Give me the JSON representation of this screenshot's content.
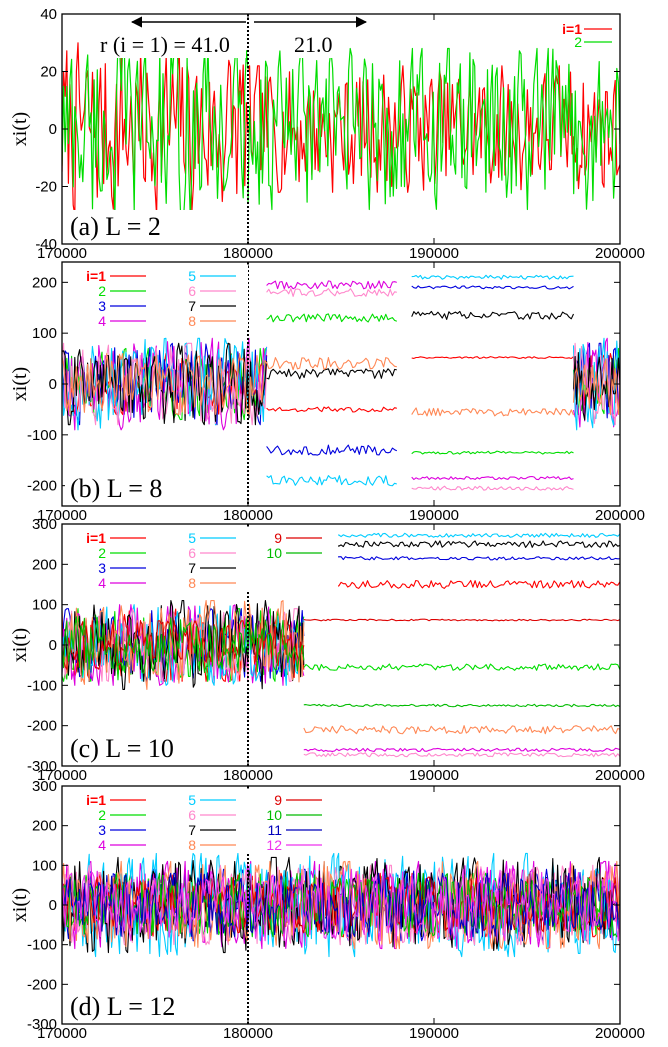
{
  "figure": {
    "background": "#ffffff"
  },
  "chart_data": [
    {
      "type": "line",
      "panel_label": "(a)   L = 2",
      "ylabel": "xi(t)",
      "xlim": [
        170000,
        200000
      ],
      "ylim": [
        -40,
        40
      ],
      "xticks": [
        170000,
        180000,
        190000,
        200000
      ],
      "yticks": [
        -40,
        -20,
        0,
        20,
        40
      ],
      "vline_x": 180000,
      "annotations": [
        "r (i = 1) = 41.0",
        "21.0"
      ],
      "series": [
        {
          "name": "i=1",
          "color": "#ff0000",
          "regimes": [
            {
              "x_range": [
                170000,
                180000
              ],
              "kind": "chaotic",
              "amplitude": 30,
              "center": 0
            },
            {
              "x_range": [
                180000,
                200000
              ],
              "kind": "chaotic",
              "amplitude": 22,
              "center": 0
            }
          ]
        },
        {
          "name": "2",
          "color": "#00dd00",
          "regimes": [
            {
              "x_range": [
                170000,
                180000
              ],
              "kind": "chaotic",
              "amplitude": 32,
              "center": 0
            },
            {
              "x_range": [
                180000,
                200000
              ],
              "kind": "chaotic",
              "amplitude": 28,
              "center": 0
            }
          ]
        }
      ]
    },
    {
      "type": "line",
      "panel_label": "(b)   L = 8",
      "ylabel": "xi(t)",
      "xlim": [
        170000,
        200000
      ],
      "ylim": [
        -240,
        240
      ],
      "xticks": [
        170000,
        180000,
        190000,
        200000
      ],
      "yticks": [
        -200,
        -100,
        0,
        100,
        200
      ],
      "vline_x": 180000,
      "series": [
        {
          "name": "i=1",
          "color": "#ff0000",
          "regimes": [
            {
              "x_range": [
                170000,
                181000
              ],
              "kind": "chaotic",
              "amplitude": 60,
              "center": 0
            },
            {
              "x_range": [
                181000,
                188000
              ],
              "kind": "plateau",
              "amplitude": 5,
              "center": -50
            },
            {
              "x_range": [
                188800,
                197500
              ],
              "kind": "plateau",
              "amplitude": 2,
              "center": 52
            },
            {
              "x_range": [
                197500,
                200000
              ],
              "kind": "chaotic",
              "amplitude": 60,
              "center": 0
            }
          ]
        },
        {
          "name": "2",
          "color": "#00dd00",
          "regimes": [
            {
              "x_range": [
                170000,
                181000
              ],
              "kind": "chaotic",
              "amplitude": 70,
              "center": 0
            },
            {
              "x_range": [
                181000,
                188000
              ],
              "kind": "plateau",
              "amplitude": 8,
              "center": 130
            },
            {
              "x_range": [
                188800,
                197500
              ],
              "kind": "plateau",
              "amplitude": 3,
              "center": -135
            },
            {
              "x_range": [
                197500,
                200000
              ],
              "kind": "chaotic",
              "amplitude": 70,
              "center": 0
            }
          ]
        },
        {
          "name": "3",
          "color": "#0000dd",
          "regimes": [
            {
              "x_range": [
                170000,
                181000
              ],
              "kind": "chaotic",
              "amplitude": 80,
              "center": 0
            },
            {
              "x_range": [
                181000,
                188000
              ],
              "kind": "plateau",
              "amplitude": 10,
              "center": -130
            },
            {
              "x_range": [
                188800,
                197500
              ],
              "kind": "plateau",
              "amplitude": 3,
              "center": 190
            },
            {
              "x_range": [
                197500,
                200000
              ],
              "kind": "chaotic",
              "amplitude": 80,
              "center": 0
            }
          ]
        },
        {
          "name": "4",
          "color": "#dd00dd",
          "regimes": [
            {
              "x_range": [
                170000,
                181000
              ],
              "kind": "chaotic",
              "amplitude": 90,
              "center": 0
            },
            {
              "x_range": [
                181000,
                188000
              ],
              "kind": "plateau",
              "amplitude": 8,
              "center": 195
            },
            {
              "x_range": [
                188800,
                197500
              ],
              "kind": "plateau",
              "amplitude": 3,
              "center": -185
            },
            {
              "x_range": [
                197500,
                200000
              ],
              "kind": "chaotic",
              "amplitude": 90,
              "center": 0
            }
          ]
        },
        {
          "name": "5",
          "color": "#00ccff",
          "regimes": [
            {
              "x_range": [
                170000,
                181000
              ],
              "kind": "chaotic",
              "amplitude": 90,
              "center": 0
            },
            {
              "x_range": [
                181000,
                188000
              ],
              "kind": "plateau",
              "amplitude": 10,
              "center": -190
            },
            {
              "x_range": [
                188800,
                197500
              ],
              "kind": "plateau",
              "amplitude": 4,
              "center": 210
            },
            {
              "x_range": [
                197500,
                200000
              ],
              "kind": "chaotic",
              "amplitude": 90,
              "center": 0
            }
          ]
        },
        {
          "name": "6",
          "color": "#ff88cc",
          "regimes": [
            {
              "x_range": [
                170000,
                181000
              ],
              "kind": "chaotic",
              "amplitude": 80,
              "center": 0
            },
            {
              "x_range": [
                181000,
                188000
              ],
              "kind": "plateau",
              "amplitude": 8,
              "center": 180
            },
            {
              "x_range": [
                188800,
                197500
              ],
              "kind": "plateau",
              "amplitude": 4,
              "center": -205
            },
            {
              "x_range": [
                197500,
                200000
              ],
              "kind": "chaotic",
              "amplitude": 80,
              "center": 0
            }
          ]
        },
        {
          "name": "7",
          "color": "#000000",
          "regimes": [
            {
              "x_range": [
                170000,
                181000
              ],
              "kind": "chaotic",
              "amplitude": 80,
              "center": 0
            },
            {
              "x_range": [
                181000,
                188000
              ],
              "kind": "plateau",
              "amplitude": 10,
              "center": 20
            },
            {
              "x_range": [
                188800,
                197500
              ],
              "kind": "plateau",
              "amplitude": 8,
              "center": 135
            },
            {
              "x_range": [
                197500,
                200000
              ],
              "kind": "chaotic",
              "amplitude": 80,
              "center": 0
            }
          ]
        },
        {
          "name": "8",
          "color": "#ff8855",
          "regimes": [
            {
              "x_range": [
                170000,
                181000
              ],
              "kind": "chaotic",
              "amplitude": 60,
              "center": 0
            },
            {
              "x_range": [
                181000,
                188000
              ],
              "kind": "plateau",
              "amplitude": 12,
              "center": 40
            },
            {
              "x_range": [
                188800,
                197500
              ],
              "kind": "plateau",
              "amplitude": 8,
              "center": -55
            },
            {
              "x_range": [
                197500,
                200000
              ],
              "kind": "chaotic",
              "amplitude": 60,
              "center": 0
            }
          ]
        }
      ]
    },
    {
      "type": "line",
      "panel_label": "(c)   L = 10",
      "ylabel": "xi(t)",
      "xlim": [
        170000,
        200000
      ],
      "ylim": [
        -300,
        300
      ],
      "xticks": [
        170000,
        180000,
        190000,
        200000
      ],
      "yticks": [
        -300,
        -200,
        -100,
        0,
        100,
        200,
        300
      ],
      "vline_x": 180000,
      "series": [
        {
          "name": "i=1",
          "color": "#ff0000",
          "regimes": [
            {
              "x_range": [
                170000,
                183000
              ],
              "kind": "chaotic",
              "amplitude": 90,
              "center": 0
            },
            {
              "x_range": [
                183000,
                200000
              ],
              "kind": "plateau",
              "amplitude": 10,
              "center": 150
            }
          ]
        },
        {
          "name": "2",
          "color": "#00dd00",
          "regimes": [
            {
              "x_range": [
                170000,
                183000
              ],
              "kind": "chaotic",
              "amplitude": 90,
              "center": 0
            },
            {
              "x_range": [
                183000,
                200000
              ],
              "kind": "plateau",
              "amplitude": 8,
              "center": -55
            }
          ]
        },
        {
          "name": "3",
          "color": "#0000dd",
          "regimes": [
            {
              "x_range": [
                170000,
                183000
              ],
              "kind": "chaotic",
              "amplitude": 90,
              "center": 0
            },
            {
              "x_range": [
                183000,
                200000
              ],
              "kind": "plateau",
              "amplitude": 4,
              "center": 215
            }
          ]
        },
        {
          "name": "4",
          "color": "#dd00dd",
          "regimes": [
            {
              "x_range": [
                170000,
                183000
              ],
              "kind": "chaotic",
              "amplitude": 100,
              "center": 0
            },
            {
              "x_range": [
                183000,
                200000
              ],
              "kind": "plateau",
              "amplitude": 4,
              "center": -260
            }
          ]
        },
        {
          "name": "5",
          "color": "#00ccff",
          "regimes": [
            {
              "x_range": [
                170000,
                183000
              ],
              "kind": "chaotic",
              "amplitude": 100,
              "center": 0
            },
            {
              "x_range": [
                183000,
                200000
              ],
              "kind": "plateau",
              "amplitude": 5,
              "center": 272
            }
          ]
        },
        {
          "name": "6",
          "color": "#ff88cc",
          "regimes": [
            {
              "x_range": [
                170000,
                183000
              ],
              "kind": "chaotic",
              "amplitude": 90,
              "center": 0
            },
            {
              "x_range": [
                183000,
                200000
              ],
              "kind": "plateau",
              "amplitude": 5,
              "center": -272
            }
          ]
        },
        {
          "name": "7",
          "color": "#000000",
          "regimes": [
            {
              "x_range": [
                170000,
                183000
              ],
              "kind": "chaotic",
              "amplitude": 110,
              "center": 0
            },
            {
              "x_range": [
                183000,
                200000
              ],
              "kind": "plateau",
              "amplitude": 8,
              "center": 250
            }
          ]
        },
        {
          "name": "8",
          "color": "#ff8855",
          "regimes": [
            {
              "x_range": [
                170000,
                183000
              ],
              "kind": "chaotic",
              "amplitude": 110,
              "center": 0
            },
            {
              "x_range": [
                183000,
                200000
              ],
              "kind": "plateau",
              "amplitude": 10,
              "center": -210
            }
          ]
        },
        {
          "name": "9",
          "color": "#dd0000",
          "regimes": [
            {
              "x_range": [
                170000,
                183000
              ],
              "kind": "chaotic",
              "amplitude": 60,
              "center": 0
            },
            {
              "x_range": [
                183000,
                200000
              ],
              "kind": "plateau",
              "amplitude": 2,
              "center": 62
            }
          ]
        },
        {
          "name": "10",
          "color": "#00bb00",
          "regimes": [
            {
              "x_range": [
                170000,
                183000
              ],
              "kind": "chaotic",
              "amplitude": 70,
              "center": 0
            },
            {
              "x_range": [
                183000,
                200000
              ],
              "kind": "plateau",
              "amplitude": 3,
              "center": -150
            }
          ]
        }
      ]
    },
    {
      "type": "line",
      "panel_label": "(d)   L = 12",
      "ylabel": "xi(t)",
      "xlim": [
        170000,
        200000
      ],
      "ylim": [
        -300,
        300
      ],
      "xticks": [
        170000,
        180000,
        190000,
        200000
      ],
      "yticks": [
        -300,
        -200,
        -100,
        0,
        100,
        200,
        300
      ],
      "vline_x": 180000,
      "series": [
        {
          "name": "i=1",
          "color": "#ff0000",
          "regimes": [
            {
              "x_range": [
                170000,
                200000
              ],
              "kind": "chaotic",
              "amplitude": 80,
              "center": 0
            }
          ]
        },
        {
          "name": "2",
          "color": "#00dd00",
          "regimes": [
            {
              "x_range": [
                170000,
                200000
              ],
              "kind": "chaotic",
              "amplitude": 80,
              "center": 0
            }
          ]
        },
        {
          "name": "3",
          "color": "#0000dd",
          "regimes": [
            {
              "x_range": [
                170000,
                200000
              ],
              "kind": "chaotic",
              "amplitude": 90,
              "center": 0
            }
          ]
        },
        {
          "name": "4",
          "color": "#dd00dd",
          "regimes": [
            {
              "x_range": [
                170000,
                200000
              ],
              "kind": "chaotic",
              "amplitude": 110,
              "center": 0
            }
          ]
        },
        {
          "name": "5",
          "color": "#00ccff",
          "regimes": [
            {
              "x_range": [
                170000,
                200000
              ],
              "kind": "chaotic",
              "amplitude": 130,
              "center": 0
            }
          ]
        },
        {
          "name": "6",
          "color": "#ff88cc",
          "regimes": [
            {
              "x_range": [
                170000,
                200000
              ],
              "kind": "chaotic",
              "amplitude": 100,
              "center": 0
            }
          ]
        },
        {
          "name": "7",
          "color": "#000000",
          "regimes": [
            {
              "x_range": [
                170000,
                200000
              ],
              "kind": "chaotic",
              "amplitude": 120,
              "center": 0
            }
          ]
        },
        {
          "name": "8",
          "color": "#ff8855",
          "regimes": [
            {
              "x_range": [
                170000,
                200000
              ],
              "kind": "chaotic",
              "amplitude": 110,
              "center": 0
            }
          ]
        },
        {
          "name": "9",
          "color": "#dd0000",
          "regimes": [
            {
              "x_range": [
                170000,
                200000
              ],
              "kind": "chaotic",
              "amplitude": 70,
              "center": 0
            }
          ]
        },
        {
          "name": "10",
          "color": "#00bb00",
          "regimes": [
            {
              "x_range": [
                170000,
                200000
              ],
              "kind": "chaotic",
              "amplitude": 80,
              "center": 0
            }
          ]
        },
        {
          "name": "11",
          "color": "#0000bb",
          "regimes": [
            {
              "x_range": [
                170000,
                200000
              ],
              "kind": "chaotic",
              "amplitude": 80,
              "center": 0
            }
          ]
        },
        {
          "name": "12",
          "color": "#ee33ee",
          "regimes": [
            {
              "x_range": [
                170000,
                200000
              ],
              "kind": "chaotic",
              "amplitude": 90,
              "center": 0
            }
          ]
        }
      ]
    }
  ]
}
